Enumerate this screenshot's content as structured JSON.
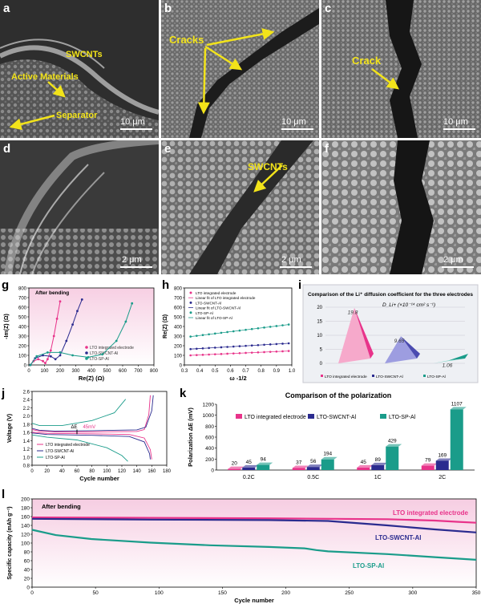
{
  "panels": {
    "a": {
      "letter": "a",
      "labels": [
        "SWCNTs",
        "Active Materials",
        "Separator"
      ],
      "scale": "10 μm"
    },
    "b": {
      "letter": "b",
      "labels": [
        "Cracks"
      ],
      "scale": "10 μm"
    },
    "c": {
      "letter": "c",
      "labels": [
        "Crack"
      ],
      "scale": "10 μm"
    },
    "d": {
      "letter": "d",
      "scale": "2 μm"
    },
    "e": {
      "letter": "e",
      "labels": [
        "SWCNTs"
      ],
      "scale": "2 μm"
    },
    "f": {
      "letter": "f",
      "scale": "2 μm"
    }
  },
  "colors": {
    "integrated": "#e8338a",
    "swcnt": "#2b2b8f",
    "sp": "#1a9c8a",
    "arrow": "#f2e31a"
  },
  "chart_data": [
    {
      "panel": "g",
      "type": "line",
      "annotation": "After bending",
      "xlabel": "Re(Z) (Ω)",
      "ylabel": "-Im(Z) (Ω)",
      "xticks": [
        "0",
        "100",
        "200",
        "300",
        "400",
        "500",
        "600",
        "700",
        "800"
      ],
      "yticks": [
        "0",
        "100",
        "200",
        "300",
        "400",
        "500",
        "600",
        "700",
        "800"
      ],
      "xlim": [
        0,
        800
      ],
      "ylim": [
        0,
        800
      ],
      "series": [
        {
          "name": "LTO integrated electrode",
          "points": [
            [
              10,
              0
            ],
            [
              30,
              40
            ],
            [
              60,
              60
            ],
            [
              90,
              40
            ],
            [
              105,
              20
            ],
            [
              120,
              60
            ],
            [
              140,
              150
            ],
            [
              160,
              300
            ],
            [
              180,
              480
            ],
            [
              200,
              660
            ]
          ]
        },
        {
          "name": "LTO-SWCNT-Al",
          "points": [
            [
              10,
              0
            ],
            [
              40,
              70
            ],
            [
              90,
              100
            ],
            [
              140,
              90
            ],
            [
              170,
              60
            ],
            [
              200,
              100
            ],
            [
              240,
              250
            ],
            [
              280,
              420
            ],
            [
              310,
              560
            ],
            [
              340,
              680
            ]
          ]
        },
        {
          "name": "LTO-SP-Al",
          "points": [
            [
              10,
              0
            ],
            [
              50,
              90
            ],
            [
              120,
              130
            ],
            [
              200,
              130
            ],
            [
              280,
              100
            ],
            [
              380,
              80
            ],
            [
              470,
              110
            ],
            [
              560,
              250
            ],
            [
              620,
              450
            ],
            [
              660,
              640
            ]
          ]
        }
      ]
    },
    {
      "panel": "h",
      "type": "scatter",
      "xlabel": "ω -1/2",
      "ylabel": "Re(Z) (Ω)",
      "xticks": [
        "0.3",
        "0.4",
        "0.5",
        "0.6",
        "0.7",
        "0.8",
        "0.9",
        "1.0"
      ],
      "yticks": [
        "0",
        "100",
        "200",
        "300",
        "400",
        "500",
        "600",
        "700",
        "800"
      ],
      "xlim": [
        0.3,
        1.0
      ],
      "ylim": [
        0,
        800
      ],
      "legend": [
        "LTO integrated electrode",
        "Linear fit of LTO integrated electrode",
        "LTO-SWCNT-Al",
        "Linear fit of LTO-SWCNT-Al",
        "LTO-SP-Al",
        "Linear fit of LTO-SP-Al"
      ],
      "series": [
        {
          "name": "LTO integrated electrode",
          "y0": 100,
          "y1": 145
        },
        {
          "name": "LTO-SWCNT-Al",
          "y0": 165,
          "y1": 225
        },
        {
          "name": "LTO-SP-Al",
          "y0": 295,
          "y1": 420
        }
      ],
      "x": [
        0.34,
        0.38,
        0.42,
        0.46,
        0.5,
        0.54,
        0.58,
        0.62,
        0.66,
        0.7,
        0.74,
        0.78,
        0.82,
        0.86,
        0.9,
        0.94,
        0.98
      ]
    },
    {
      "panel": "i",
      "type": "bar",
      "title": "Comparison of the Li⁺ diffusion coefficient for the three electrodes",
      "ylabel": "D_Li+ (×10⁻¹⁴ cm² s⁻¹)",
      "yticks": [
        "0",
        "5",
        "10",
        "15",
        "20"
      ],
      "ylim": [
        0,
        20
      ],
      "categories": [
        "LTO integrated electrode",
        "LTO-SWCNT-Al",
        "LTO-SP-Al"
      ],
      "values": [
        19.8,
        9.65,
        1.06
      ],
      "value_labels": [
        "19.8",
        "9.65",
        "1.06"
      ]
    },
    {
      "panel": "j",
      "type": "line",
      "xlabel": "Cycle number",
      "ylabel": "Voltage (V)",
      "xticks": [
        "0",
        "20",
        "40",
        "60",
        "80",
        "100",
        "120",
        "140",
        "160",
        "180"
      ],
      "yticks": [
        "0.8",
        "1.0",
        "1.2",
        "1.4",
        "1.6",
        "1.8",
        "2.0",
        "2.2",
        "2.4",
        "2.6"
      ],
      "xlim": [
        0,
        180
      ],
      "ylim": [
        0.7,
        2.6
      ],
      "annotations": [
        "ΔE",
        "45mV"
      ],
      "legend": [
        "LTO integrated electrode",
        "LTO-SWCNT-Al",
        "LTO-SP-Al"
      ]
    },
    {
      "panel": "k",
      "type": "bar",
      "title": "Comparison of the polarization",
      "ylabel": "Polarization ΔE (mV)",
      "yticks": [
        "0",
        "200",
        "400",
        "600",
        "800",
        "1000",
        "1200"
      ],
      "ylim": [
        0,
        1200
      ],
      "categories": [
        "0.2C",
        "0.5C",
        "1C",
        "2C"
      ],
      "series": [
        {
          "name": "LTO integrated electrode",
          "values": [
            20,
            37,
            45,
            79
          ]
        },
        {
          "name": "LTO-SWCNT-Al",
          "values": [
            45,
            56,
            89,
            169
          ]
        },
        {
          "name": "LTO-SP-Al",
          "values": [
            94,
            194,
            429,
            1107
          ]
        }
      ]
    },
    {
      "panel": "l",
      "type": "line",
      "annotation": "After bending",
      "xlabel": "Cycle number",
      "ylabel": "Specific capacity (mAh g⁻¹)",
      "xticks": [
        "0",
        "50",
        "100",
        "150",
        "200",
        "250",
        "300",
        "350"
      ],
      "yticks": [
        "0",
        "20",
        "40",
        "60",
        "80",
        "100",
        "120",
        "140",
        "160",
        "180",
        "200"
      ],
      "xlim": [
        0,
        375
      ],
      "ylim": [
        0,
        200
      ],
      "series": [
        {
          "name": "LTO integrated electrode",
          "points": [
            [
              0,
              158
            ],
            [
              100,
              157
            ],
            [
              200,
              156
            ],
            [
              300,
              154
            ],
            [
              340,
              151
            ],
            [
              360,
              148
            ],
            [
              375,
              146
            ]
          ]
        },
        {
          "name": "LTO-SWCNT-Al",
          "points": [
            [
              0,
              155
            ],
            [
              100,
              153
            ],
            [
              200,
              152
            ],
            [
              250,
              150
            ],
            [
              300,
              140
            ],
            [
              340,
              131
            ],
            [
              375,
              124
            ]
          ]
        },
        {
          "name": "LTO-SP-Al",
          "points": [
            [
              0,
              130
            ],
            [
              20,
              118
            ],
            [
              50,
              109
            ],
            [
              100,
              101
            ],
            [
              150,
              95
            ],
            [
              200,
              91
            ],
            [
              230,
              88
            ],
            [
              240,
              84
            ],
            [
              250,
              81
            ],
            [
              300,
              75
            ],
            [
              340,
              68
            ],
            [
              375,
              62
            ]
          ]
        }
      ]
    }
  ]
}
